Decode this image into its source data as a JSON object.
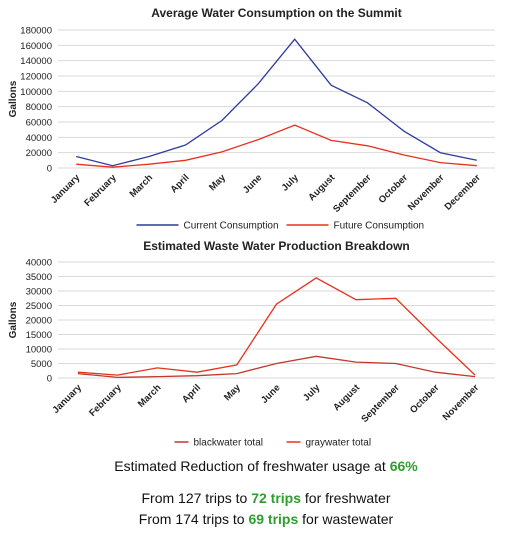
{
  "chart_data": [
    {
      "type": "line",
      "title": "Average Water Consumption on the Summit",
      "y_label": "Gallons",
      "categories": [
        "January",
        "February",
        "March",
        "April",
        "May",
        "June",
        "July",
        "August",
        "September",
        "October",
        "November",
        "December"
      ],
      "series": [
        {
          "name": "Current Consumption",
          "color": "#2e3c9c",
          "values": [
            15000,
            3000,
            15000,
            30000,
            62000,
            110000,
            168000,
            108000,
            85000,
            48000,
            20000,
            10000
          ]
        },
        {
          "name": "Future Consumption",
          "color": "#e8321e",
          "values": [
            5000,
            1000,
            5000,
            10000,
            21000,
            37000,
            56000,
            36000,
            29000,
            17000,
            7000,
            3000
          ]
        }
      ],
      "ylim": [
        0,
        180000
      ],
      "yticks": [
        0,
        20000,
        40000,
        60000,
        80000,
        100000,
        120000,
        140000,
        160000,
        180000
      ],
      "grid": true,
      "legend": "bottom"
    },
    {
      "type": "line",
      "title": "Estimated Waste Water Production Breakdown",
      "y_label": "Gallons",
      "categories": [
        "January",
        "February",
        "March",
        "April",
        "May",
        "June",
        "July",
        "August",
        "September",
        "October",
        "November"
      ],
      "series": [
        {
          "name": "blackwater total",
          "color": "#c0392b",
          "values": [
            1500,
            200,
            500,
            800,
            1500,
            5000,
            7500,
            5500,
            5000,
            2000,
            500
          ]
        },
        {
          "name": "graywater total",
          "color": "#e8321e",
          "values": [
            2000,
            1000,
            3500,
            2000,
            4500,
            25500,
            34500,
            27000,
            27500,
            14000,
            1000
          ]
        }
      ],
      "ylim": [
        0,
        40000
      ],
      "yticks": [
        0,
        5000,
        10000,
        15000,
        20000,
        25000,
        30000,
        35000,
        40000
      ],
      "grid": true,
      "legend": "bottom"
    }
  ],
  "summary": {
    "lines": [
      {
        "parts": [
          {
            "text": "Estimated Reduction of freshwater usage at ",
            "color": "#111111"
          },
          {
            "text": "66%",
            "color": "#2e9e2e"
          }
        ]
      },
      {
        "parts": [
          {
            "text": "From 127 trips to ",
            "color": "#111111"
          },
          {
            "text": "72 trips",
            "color": "#2e9e2e"
          },
          {
            "text": " for freshwater",
            "color": "#111111"
          }
        ]
      },
      {
        "parts": [
          {
            "text": "From 174 trips to ",
            "color": "#111111"
          },
          {
            "text": "69 trips",
            "color": "#2e9e2e"
          },
          {
            "text": " for wastewater",
            "color": "#111111"
          }
        ]
      }
    ]
  }
}
